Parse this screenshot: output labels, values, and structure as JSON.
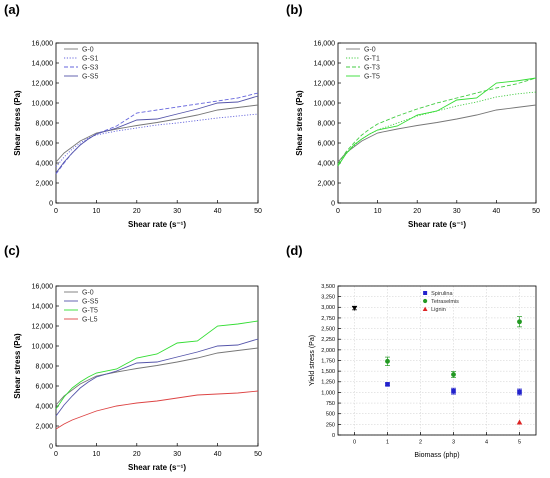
{
  "chart_data": [
    {
      "panel_label": "(a)",
      "type": "line",
      "xlabel": "Shear rate (s⁻¹)",
      "ylabel": "Shear stress (Pa)",
      "xlim": [
        0,
        50
      ],
      "ylim": [
        0,
        16000
      ],
      "x_ticks": [
        "0",
        "10",
        "20",
        "30",
        "40",
        "50"
      ],
      "y_ticks": [
        "0",
        "2,000",
        "4,000",
        "6,000",
        "8,000",
        "10,000",
        "12,000",
        "14,000",
        "16,000"
      ],
      "legend_position": "top-left",
      "series": [
        {
          "name": "G-0",
          "color": "#777777",
          "dash": "solid",
          "x": [
            0,
            2,
            4,
            6,
            8,
            10,
            15,
            20,
            25,
            30,
            35,
            40,
            45,
            50
          ],
          "y": [
            4100,
            5000,
            5600,
            6200,
            6600,
            7000,
            7400,
            7750,
            8050,
            8400,
            8800,
            9300,
            9550,
            9800
          ]
        },
        {
          "name": "G-S1",
          "color": "#6666dd",
          "dash": "dotted",
          "x": [
            0,
            2,
            4,
            6,
            8,
            10,
            15,
            20,
            25,
            30,
            35,
            40,
            45,
            50
          ],
          "y": [
            3600,
            4600,
            5400,
            6000,
            6500,
            6800,
            7200,
            7500,
            7800,
            8000,
            8250,
            8500,
            8700,
            8900
          ]
        },
        {
          "name": "G-S3",
          "color": "#6666dd",
          "dash": "dashed",
          "x": [
            0,
            2,
            4,
            6,
            8,
            10,
            15,
            20,
            25,
            30,
            35,
            40,
            45,
            50
          ],
          "y": [
            2900,
            4000,
            5000,
            5800,
            6400,
            6900,
            7700,
            9000,
            9300,
            9600,
            9900,
            10200,
            10500,
            11000
          ]
        },
        {
          "name": "G-S5",
          "color": "#5555aa",
          "dash": "solid",
          "x": [
            0,
            2,
            4,
            6,
            8,
            10,
            15,
            20,
            25,
            30,
            35,
            40,
            45,
            50
          ],
          "y": [
            3000,
            4100,
            5000,
            5800,
            6400,
            6900,
            7500,
            8300,
            8400,
            8900,
            9400,
            10000,
            10100,
            10700
          ]
        }
      ]
    },
    {
      "panel_label": "(b)",
      "type": "line",
      "xlabel": "Shear rate (s⁻¹)",
      "ylabel": "Shear stress (Pa)",
      "xlim": [
        0,
        50
      ],
      "ylim": [
        0,
        16000
      ],
      "x_ticks": [
        "0",
        "10",
        "20",
        "30",
        "40",
        "50"
      ],
      "y_ticks": [
        "0",
        "2,000",
        "4,000",
        "6,000",
        "8,000",
        "10,000",
        "12,000",
        "14,000",
        "16,000"
      ],
      "legend_position": "top-left",
      "series": [
        {
          "name": "G-0",
          "color": "#777777",
          "dash": "solid",
          "x": [
            0,
            2,
            4,
            6,
            8,
            10,
            15,
            20,
            25,
            30,
            35,
            40,
            45,
            50
          ],
          "y": [
            4100,
            5000,
            5600,
            6200,
            6600,
            7000,
            7400,
            7750,
            8050,
            8400,
            8800,
            9300,
            9550,
            9800
          ]
        },
        {
          "name": "G-T1",
          "color": "#44cc44",
          "dash": "dotted",
          "x": [
            0,
            2,
            4,
            6,
            8,
            10,
            15,
            20,
            25,
            30,
            35,
            40,
            45,
            50
          ],
          "y": [
            3800,
            4900,
            5700,
            6400,
            6900,
            7300,
            8000,
            8700,
            9200,
            9700,
            10100,
            10600,
            10900,
            11100
          ]
        },
        {
          "name": "G-T3",
          "color": "#44cc44",
          "dash": "dashed",
          "x": [
            0,
            2,
            4,
            6,
            8,
            10,
            15,
            20,
            25,
            30,
            35,
            40,
            45,
            50
          ],
          "y": [
            3900,
            5100,
            6000,
            6800,
            7400,
            7900,
            8700,
            9400,
            10000,
            10500,
            11000,
            11500,
            11900,
            12500
          ]
        },
        {
          "name": "G-T5",
          "color": "#33dd33",
          "dash": "solid",
          "x": [
            0,
            2,
            4,
            6,
            8,
            10,
            15,
            20,
            25,
            30,
            35,
            40,
            45,
            50
          ],
          "y": [
            3700,
            4900,
            5800,
            6400,
            6900,
            7300,
            7700,
            8800,
            9200,
            10300,
            10500,
            12000,
            12200,
            12500
          ]
        }
      ]
    },
    {
      "panel_label": "(c)",
      "type": "line",
      "xlabel": "Shear rate (s⁻¹)",
      "ylabel": "Shear stress (Pa)",
      "xlim": [
        0,
        50
      ],
      "ylim": [
        0,
        16000
      ],
      "x_ticks": [
        "0",
        "10",
        "20",
        "30",
        "40",
        "50"
      ],
      "y_ticks": [
        "0",
        "2,000",
        "4,000",
        "6,000",
        "8,000",
        "10,000",
        "12,000",
        "14,000",
        "16,000"
      ],
      "legend_position": "top-left",
      "series": [
        {
          "name": "G-0",
          "color": "#777777",
          "dash": "solid",
          "x": [
            0,
            2,
            4,
            6,
            8,
            10,
            15,
            20,
            25,
            30,
            35,
            40,
            45,
            50
          ],
          "y": [
            4100,
            5000,
            5600,
            6200,
            6600,
            7000,
            7400,
            7750,
            8050,
            8400,
            8800,
            9300,
            9550,
            9800
          ]
        },
        {
          "name": "G-S5",
          "color": "#5555aa",
          "dash": "solid",
          "x": [
            0,
            2,
            4,
            6,
            8,
            10,
            15,
            20,
            25,
            30,
            35,
            40,
            45,
            50
          ],
          "y": [
            3000,
            4100,
            5000,
            5800,
            6400,
            6900,
            7500,
            8300,
            8400,
            8900,
            9400,
            10000,
            10100,
            10700
          ]
        },
        {
          "name": "G-T5",
          "color": "#33dd33",
          "dash": "solid",
          "x": [
            0,
            2,
            4,
            6,
            8,
            10,
            15,
            20,
            25,
            30,
            35,
            40,
            45,
            50
          ],
          "y": [
            3700,
            4900,
            5800,
            6400,
            6900,
            7300,
            7700,
            8800,
            9200,
            10300,
            10500,
            12000,
            12200,
            12500
          ]
        },
        {
          "name": "G-L5",
          "color": "#dd4444",
          "dash": "solid",
          "x": [
            0,
            2,
            4,
            6,
            8,
            10,
            15,
            20,
            25,
            30,
            35,
            40,
            45,
            50
          ],
          "y": [
            1700,
            2200,
            2600,
            2900,
            3200,
            3500,
            4000,
            4300,
            4500,
            4800,
            5100,
            5200,
            5300,
            5500
          ]
        }
      ]
    },
    {
      "panel_label": "(d)",
      "type": "scatter",
      "xlabel": "Biomass (php)",
      "ylabel": "Yield stress (Pa)",
      "xlim": [
        -0.5,
        5.5
      ],
      "ylim": [
        0,
        3500
      ],
      "x_ticks": [
        "0",
        "1",
        "2",
        "3",
        "4",
        "5"
      ],
      "y_ticks": [
        "0",
        "250",
        "500",
        "750",
        "1,000",
        "1,250",
        "1,500",
        "1,750",
        "2,000",
        "2,250",
        "2,500",
        "2,750",
        "3,000",
        "3,250",
        "3,500"
      ],
      "grid": true,
      "legend_position": "top-center",
      "series": [
        {
          "name": "",
          "color": "#000000",
          "marker": "triangle-down",
          "x": [
            0
          ],
          "y": [
            2980
          ],
          "err": [
            40
          ]
        },
        {
          "name": "Spirulina",
          "color": "#2222cc",
          "marker": "square",
          "x": [
            1,
            3,
            5
          ],
          "y": [
            1190,
            1030,
            1010
          ],
          "err": [
            30,
            70,
            70
          ]
        },
        {
          "name": "Tetraselmis",
          "color": "#229922",
          "marker": "circle",
          "x": [
            1,
            3,
            5
          ],
          "y": [
            1730,
            1420,
            2660
          ],
          "err": [
            100,
            70,
            120
          ]
        },
        {
          "name": "Lignin",
          "color": "#dd2222",
          "marker": "triangle-up",
          "x": [
            5
          ],
          "y": [
            300
          ],
          "err": [
            0
          ]
        }
      ]
    }
  ]
}
